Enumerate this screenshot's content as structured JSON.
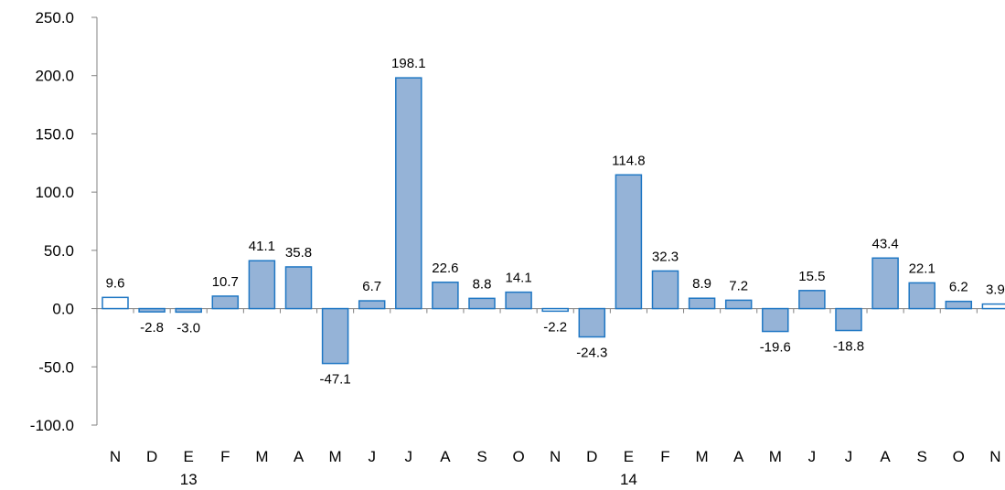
{
  "chart_data": {
    "type": "bar",
    "categories": [
      "N",
      "D",
      "E",
      "F",
      "M",
      "A",
      "M",
      "J",
      "J",
      "A",
      "S",
      "O",
      "N",
      "D",
      "E",
      "F",
      "M",
      "A",
      "M",
      "J",
      "J",
      "A",
      "S",
      "O",
      "N"
    ],
    "values": [
      9.6,
      -2.8,
      -3.0,
      10.7,
      41.1,
      35.8,
      -47.1,
      6.7,
      198.1,
      22.6,
      8.8,
      14.1,
      -2.2,
      -24.3,
      114.8,
      32.3,
      8.9,
      7.2,
      -19.6,
      15.5,
      -18.8,
      43.4,
      22.1,
      6.2,
      3.9
    ],
    "data_labels": [
      "9.6",
      "-2.8",
      "-3.0",
      "10.7",
      "41.1",
      "35.8",
      "-47.1",
      "6.7",
      "198.1",
      "22.6",
      "8.8",
      "14.1",
      "-2.2",
      "-24.3",
      "114.8",
      "32.3",
      "8.9",
      "7.2",
      "-19.6",
      "15.5",
      "-18.8",
      "43.4",
      "22.1",
      "6.2",
      "3.9"
    ],
    "highlighted": [
      true,
      false,
      false,
      false,
      false,
      false,
      false,
      false,
      false,
      false,
      false,
      false,
      true,
      false,
      false,
      false,
      false,
      false,
      false,
      false,
      false,
      false,
      false,
      false,
      true
    ],
    "year_labels": [
      {
        "label": "13",
        "index": 2
      },
      {
        "label": "14",
        "index": 14
      }
    ],
    "ylim": [
      -100,
      250
    ],
    "yticks": [
      "250.0",
      "200.0",
      "150.0",
      "100.0",
      "50.0",
      "0.0",
      "-50.0",
      "-100.0"
    ],
    "ytick_values": [
      250,
      200,
      150,
      100,
      50,
      0,
      -50,
      -100
    ],
    "grid": false,
    "colors": {
      "bar_fill": "#95b3d7",
      "bar_stroke": "#1f77c4",
      "highlight_fill": "#ffffff",
      "axis": "#808080"
    }
  }
}
